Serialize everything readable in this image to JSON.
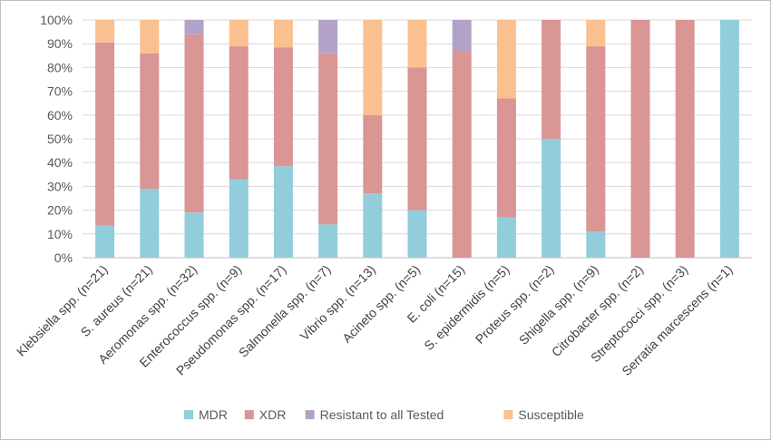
{
  "chart_data": {
    "type": "bar",
    "stacked": true,
    "percent": true,
    "title": "",
    "xlabel": "",
    "ylabel": "",
    "ylim": [
      0,
      100
    ],
    "yticks": [
      "0%",
      "10%",
      "20%",
      "30%",
      "40%",
      "50%",
      "60%",
      "70%",
      "80%",
      "90%",
      "100%"
    ],
    "grid": true,
    "legend_position": "bottom",
    "categories": [
      "Klebsiella spp. (n=21)",
      "S. aureus (n=21)",
      "Aeromonas spp. (n=32)",
      "Enterococcus spp. (n=9)",
      "Pseudomonas spp. (n=17)",
      "Salmonella spp. (n=7)",
      "Vibrio spp. (n=13)",
      "Acineto spp. (n=5)",
      "E. coli (n=15)",
      "S. epidermidis (n=5)",
      "Proteus spp. (n=2)",
      "Shigella spp. (n=9)",
      "Citrobacter spp. (n=2)",
      "Streptococci spp. (n=3)",
      "Serratia marcescens (n=1)"
    ],
    "series": [
      {
        "name": "MDR",
        "color": "#92cddc",
        "values": [
          13.5,
          29,
          19,
          33,
          38.5,
          14,
          27,
          20,
          0,
          17,
          50,
          11,
          0,
          0,
          100
        ]
      },
      {
        "name": "XDR",
        "color": "#d99694",
        "values": [
          77,
          57,
          75,
          56,
          50,
          72,
          33,
          60,
          87,
          50,
          50,
          78,
          100,
          100,
          0
        ]
      },
      {
        "name": "Resistant to all Tested",
        "color": "#b3a2c7",
        "values": [
          0,
          0,
          6,
          0,
          0,
          14,
          0,
          0,
          13,
          0,
          0,
          0,
          0,
          0,
          0
        ]
      },
      {
        "name": "Susceptible",
        "color": "#fac090",
        "values": [
          9.5,
          14,
          0,
          11,
          11.5,
          0,
          40,
          20,
          0,
          33,
          0,
          11,
          0,
          0,
          0
        ]
      }
    ],
    "colors": {
      "gridline": "#d9d9d9",
      "axis": "#bfbfbf",
      "text": "#595959"
    }
  }
}
